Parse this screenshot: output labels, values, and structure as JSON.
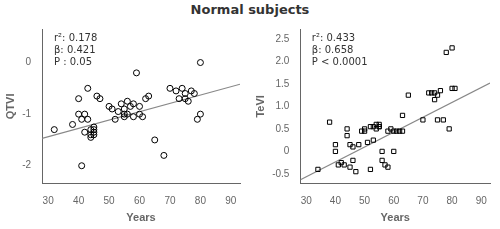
{
  "chart_data": [
    {
      "type": "scatter",
      "title": "Normal subjects",
      "x_label": "Years",
      "y_label": "QTVI",
      "xlim": [
        28,
        93
      ],
      "ylim": [
        -2.35,
        0.65
      ],
      "xticks": [
        30,
        40,
        50,
        60,
        70,
        80,
        90
      ],
      "yticks": [
        -2,
        -1,
        0
      ],
      "grid": false,
      "annotations": [
        "r²: 0.178",
        "β: 0.421",
        "P : 0.05"
      ],
      "series": [
        {
          "type": "scatter",
          "marker": "circle",
          "color": "#000000",
          "x": [
            32,
            38,
            40,
            40,
            41,
            41,
            42,
            42,
            43,
            43,
            44,
            44,
            44,
            45,
            45,
            45,
            45,
            46,
            47,
            50,
            51,
            52,
            53,
            54,
            55,
            55,
            55,
            56,
            56,
            57,
            58,
            58,
            59,
            60,
            60,
            61,
            62,
            63,
            65,
            68,
            70,
            72,
            73,
            74,
            75,
            75,
            76,
            77,
            78,
            79,
            80,
            80
          ],
          "values": [
            -1.3,
            -1.2,
            -0.7,
            -1.0,
            -1.1,
            -2.0,
            -1.0,
            -1.35,
            -0.5,
            -1.1,
            -1.3,
            -1.4,
            -1.45,
            -1.25,
            -1.3,
            -1.35,
            -1.4,
            -0.65,
            -0.7,
            -0.85,
            -0.9,
            -1.1,
            -0.95,
            -0.8,
            -0.9,
            -1.0,
            -1.05,
            -0.75,
            -1.0,
            -0.85,
            -0.8,
            -1.05,
            -0.2,
            -0.85,
            -1.0,
            -1.05,
            -0.7,
            -0.65,
            -1.5,
            -1.8,
            -0.5,
            -0.55,
            -0.7,
            -0.5,
            -0.6,
            -0.7,
            -0.75,
            -0.55,
            -0.6,
            -1.1,
            0.0,
            -1.0
          ]
        },
        {
          "type": "line",
          "line_style": "solid",
          "color": "#888888",
          "x": [
            28,
            93
          ],
          "values": [
            -1.47,
            -0.42
          ]
        }
      ]
    },
    {
      "type": "scatter",
      "x_label": "Years",
      "y_label": "TeVI",
      "xlim": [
        28,
        93
      ],
      "ylim": [
        -0.72,
        2.72
      ],
      "xticks": [
        30,
        40,
        50,
        60,
        70,
        80,
        90
      ],
      "yticks": [
        -0.5,
        0,
        0.5,
        {
          "value": 1.0,
          "label": "1.0"
        },
        1.5,
        {
          "value": 2.0,
          "label": "2.0"
        },
        2.5
      ],
      "grid": false,
      "annotations": [
        "r²: 0.433",
        "β: 0.658",
        "P < 0.0001"
      ],
      "series": [
        {
          "type": "scatter",
          "marker": "square",
          "color": "#000000",
          "x": [
            34,
            38,
            40,
            40,
            41,
            42,
            43,
            44,
            44,
            45,
            45,
            46,
            46,
            47,
            48,
            49,
            50,
            50,
            51,
            52,
            52,
            53,
            53,
            54,
            54,
            55,
            55,
            55,
            56,
            56,
            57,
            58,
            58,
            59,
            60,
            60,
            61,
            62,
            63,
            63,
            65,
            70,
            72,
            73,
            74,
            74,
            75,
            75,
            76,
            77,
            78,
            79,
            80,
            80,
            81
          ],
          "values": [
            -0.4,
            0.65,
            0.0,
            0.15,
            -0.3,
            -0.25,
            -0.3,
            0.35,
            0.5,
            0.15,
            -0.35,
            -0.2,
            0.1,
            -0.45,
            0.15,
            0.45,
            0.5,
            0.45,
            0.2,
            0.55,
            -0.4,
            0.25,
            0.55,
            0.5,
            0.6,
            0.55,
            0.55,
            0.6,
            0.0,
            -0.2,
            -0.3,
            -0.35,
            0.45,
            0.5,
            0.0,
            0.45,
            0.45,
            0.45,
            0.45,
            0.8,
            1.25,
            0.7,
            1.3,
            1.3,
            1.15,
            1.3,
            1.25,
            0.7,
            1.35,
            0.7,
            2.2,
            0.5,
            1.4,
            2.3,
            1.4
          ]
        },
        {
          "type": "line",
          "line_style": "solid",
          "color": "#888888",
          "x": [
            28,
            93
          ],
          "values": [
            -0.63,
            1.52
          ]
        }
      ]
    }
  ]
}
